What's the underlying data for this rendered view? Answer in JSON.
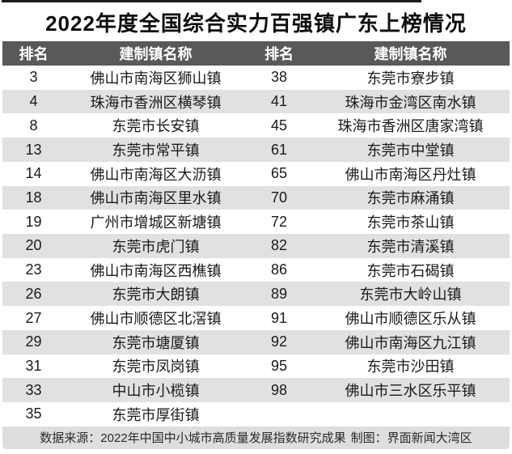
{
  "chart_data": {
    "type": "table",
    "title": "2022年度全国综合实力百强镇广东上榜情况",
    "columns": [
      "排名",
      "建制镇名称",
      "排名",
      "建制镇名称"
    ],
    "rows": [
      [
        3,
        "佛山市南海区狮山镇",
        38,
        "东莞市寮步镇"
      ],
      [
        4,
        "珠海市香洲区横琴镇",
        41,
        "珠海市金湾区南水镇"
      ],
      [
        8,
        "东莞市长安镇",
        45,
        "珠海市香洲区唐家湾镇"
      ],
      [
        13,
        "东莞市常平镇",
        61,
        "东莞市中堂镇"
      ],
      [
        14,
        "佛山市南海区大沥镇",
        65,
        "佛山市南海区丹灶镇"
      ],
      [
        18,
        "佛山市南海区里水镇",
        70,
        "东莞市麻涌镇"
      ],
      [
        19,
        "广州市增城区新塘镇",
        72,
        "东莞市茶山镇"
      ],
      [
        20,
        "东莞市虎门镇",
        82,
        "东莞市清溪镇"
      ],
      [
        23,
        "佛山市南海区西樵镇",
        86,
        "东莞市石碣镇"
      ],
      [
        26,
        "东莞市大朗镇",
        89,
        "东莞市大岭山镇"
      ],
      [
        27,
        "佛山市顺德区北滘镇",
        91,
        "佛山市顺德区乐从镇"
      ],
      [
        29,
        "东莞市塘厦镇",
        92,
        "佛山市南海区九江镇"
      ],
      [
        31,
        "东莞市凤岗镇",
        95,
        "东莞市沙田镇"
      ],
      [
        33,
        "中山市小榄镇",
        98,
        "佛山市三水区乐平镇"
      ],
      [
        35,
        "东莞市厚街镇",
        "",
        ""
      ]
    ],
    "layout_hints": {
      "striped": true,
      "stripe_start": "white",
      "columns_centered": true
    }
  },
  "footer": {
    "source": "数据来源：2022年中国中小城市高质量发展指数研究成果",
    "credit": "制图：界面新闻大湾区"
  },
  "colors": {
    "header_bg": "#595959",
    "stripe": "#e1e1e1",
    "footer_bg": "#dedede",
    "title_color": "#0d0d0d",
    "header_text": "#ffffff"
  }
}
